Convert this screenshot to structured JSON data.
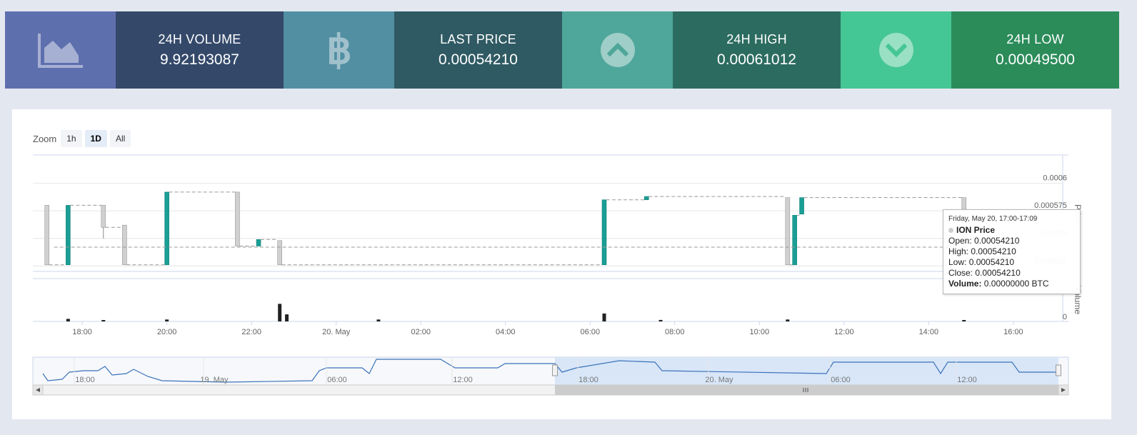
{
  "stats": [
    {
      "icon": "area-chart-icon",
      "label": "24H VOLUME",
      "value": "9.92193087",
      "icon_color": "#5e6fae",
      "box_color": "#34496a"
    },
    {
      "icon": "bitcoin-icon",
      "label": "LAST PRICE",
      "value": "0.00054210",
      "icon_color": "#528fa3",
      "box_color": "#2f5a63"
    },
    {
      "icon": "chevron-up-circle-icon",
      "label": "24H HIGH",
      "value": "0.00061012",
      "icon_color": "#4fa69a",
      "box_color": "#2c6c60"
    },
    {
      "icon": "chevron-down-circle-icon",
      "label": "24H LOW",
      "value": "0.00049500",
      "icon_color": "#45c695",
      "box_color": "#2b8c5a"
    }
  ],
  "zoom": {
    "label": "Zoom",
    "buttons": [
      "1h",
      "1D",
      "All"
    ],
    "active": "1D"
  },
  "chart_data": {
    "type": "candlestick",
    "x_range": [
      "19 May 16:50",
      "20 May 17:10"
    ],
    "x_ticks": [
      "18:00",
      "20:00",
      "22:00",
      "20. May",
      "02:00",
      "04:00",
      "06:00",
      "08:00",
      "10:00",
      "12:00",
      "14:00",
      "16:00"
    ],
    "price_axis": {
      "label": "Price",
      "ticks": [
        "0.0006",
        "0.000575",
        "0.00055",
        "0.000525"
      ],
      "range": [
        0.00052,
        0.000625
      ]
    },
    "volume_axis": {
      "label": "Volume",
      "ticks": [
        "0"
      ]
    },
    "colors": {
      "up": "#1a9e95",
      "down": "#d0d0d0",
      "volume": "#222222",
      "navigator_line": "#3b72b9",
      "navigator_mask": "#d2e3f7"
    },
    "candles": [
      {
        "t": "17:10",
        "open": 0.00058,
        "high": 0.00058,
        "low": 0.000526,
        "close": 0.000526
      },
      {
        "t": "17:40",
        "open": 0.000526,
        "high": 0.00058,
        "low": 0.000526,
        "close": 0.00058
      },
      {
        "t": "18:30",
        "open": 0.00058,
        "high": 0.00058,
        "low": 0.00055,
        "close": 0.00056
      },
      {
        "t": "19:00",
        "open": 0.000562,
        "high": 0.000562,
        "low": 0.000526,
        "close": 0.000526
      },
      {
        "t": "20:00",
        "open": 0.000526,
        "high": 0.000592,
        "low": 0.000526,
        "close": 0.000592
      },
      {
        "t": "21:40",
        "open": 0.000592,
        "high": 0.000592,
        "low": 0.000543,
        "close": 0.000543
      },
      {
        "t": "22:10",
        "open": 0.000543,
        "high": 0.000549,
        "low": 0.000543,
        "close": 0.000549
      },
      {
        "t": "22:40",
        "open": 0.000548,
        "high": 0.000548,
        "low": 0.000526,
        "close": 0.000526
      },
      {
        "t": "06:20",
        "open": 0.000526,
        "high": 0.000585,
        "low": 0.000526,
        "close": 0.000585
      },
      {
        "t": "07:20",
        "open": 0.000585,
        "high": 0.000588,
        "low": 0.000585,
        "close": 0.000588
      },
      {
        "t": "10:40",
        "open": 0.000587,
        "high": 0.000587,
        "low": 0.000526,
        "close": 0.000526
      },
      {
        "t": "10:50",
        "open": 0.000526,
        "high": 0.000571,
        "low": 0.000526,
        "close": 0.000571
      },
      {
        "t": "11:00",
        "open": 0.000572,
        "high": 0.000587,
        "low": 0.000572,
        "close": 0.000587
      },
      {
        "t": "14:50",
        "open": 0.000587,
        "high": 0.000587,
        "low": 0.000542,
        "close": 0.000542
      }
    ],
    "volumes": [
      {
        "t": "17:40",
        "v": 0.12
      },
      {
        "t": "18:30",
        "v": 0.04
      },
      {
        "t": "20:00",
        "v": 0.09
      },
      {
        "t": "22:40",
        "v": 0.82
      },
      {
        "t": "22:50",
        "v": 0.33
      },
      {
        "t": "01:00",
        "v": 0.09
      },
      {
        "t": "06:20",
        "v": 0.37
      },
      {
        "t": "07:40",
        "v": 0.07
      },
      {
        "t": "10:40",
        "v": 0.09
      },
      {
        "t": "14:50",
        "v": 0.05
      }
    ],
    "navigator": {
      "ticks": [
        "18:00",
        "19. May",
        "06:00",
        "12:00",
        "18:00",
        "20. May",
        "06:00",
        "12:00"
      ]
    },
    "tooltip": {
      "date": "Friday, May 20, 17:00-17:09",
      "series": "ION Price",
      "open_label": "Open:",
      "open": "0.00054210",
      "high_label": "High:",
      "high": "0.00054210",
      "low_label": "Low:",
      "low": "0.00054210",
      "close_label": "Close:",
      "close": "0.00054210",
      "volume_label": "Volume:",
      "volume": "0.00000000 BTC"
    }
  }
}
